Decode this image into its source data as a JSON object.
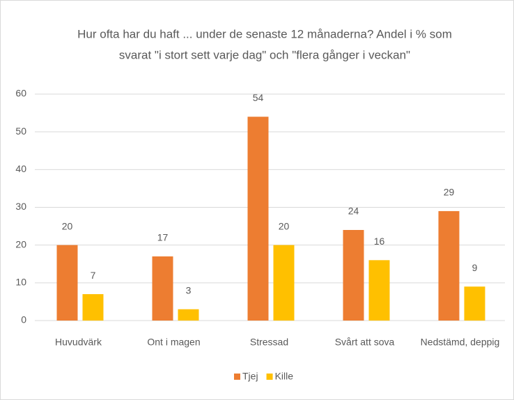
{
  "chart_data": {
    "type": "bar",
    "title": [
      "Hur ofta har du haft ... under de senaste 12 månaderna? Andel i % som",
      "svarat \"i stort sett varje dag\" och \"flera gånger i veckan\""
    ],
    "categories": [
      "Huvudvärk",
      "Ont i magen",
      "Stressad",
      "Svårt att sova",
      "Nedstämd, deppig"
    ],
    "series": [
      {
        "name": "Tjej",
        "color": "#ed7d31",
        "values": [
          20,
          17,
          54,
          24,
          29
        ]
      },
      {
        "name": "Kille",
        "color": "#ffc000",
        "values": [
          7,
          3,
          20,
          16,
          9
        ]
      }
    ],
    "ylim": [
      0,
      60
    ],
    "yticks": [
      0,
      10,
      20,
      30,
      40,
      50,
      60
    ],
    "grid": true,
    "legend": "bottom"
  }
}
